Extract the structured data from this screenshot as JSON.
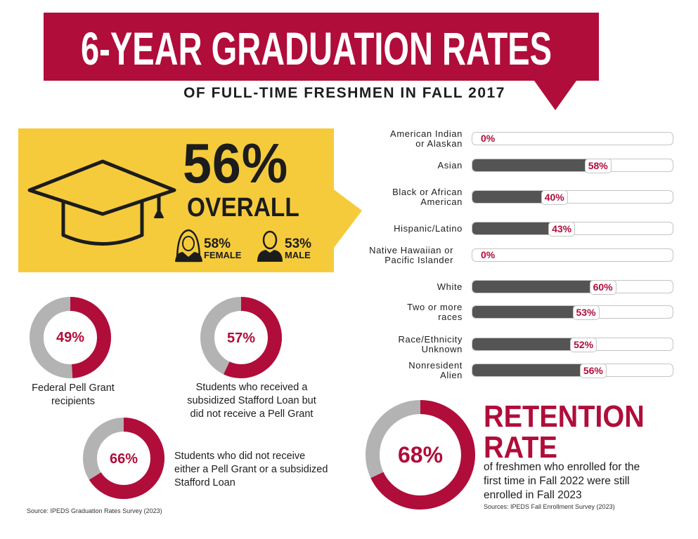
{
  "header": {
    "title": "6-YEAR GRADUATION RATES",
    "subtitle": "OF FULL-TIME FRESHMEN IN FALL 2017"
  },
  "overall": {
    "value": "56%",
    "label": "OVERALL",
    "female": {
      "value": "58%",
      "label": "FEMALE"
    },
    "male": {
      "value": "53%",
      "label": "MALE"
    }
  },
  "colors": {
    "brand_red": "#B00D3A",
    "yellow": "#F5CB3C",
    "bar_fill": "#545454",
    "donut_rest": "#B3B3B3"
  },
  "chart_data": [
    {
      "type": "bar",
      "orientation": "horizontal",
      "categories": [
        "American Indian\nor Alaskan",
        "Asian",
        "Black or African\nAmerican",
        "Hispanic/Latino",
        "Native Hawaiian or\nPacific Islander",
        "White",
        "Two or more\nraces",
        "Race/Ethnicity\nUnknown",
        "Nonresident\nAlien"
      ],
      "values": [
        0,
        58,
        40,
        43,
        0,
        60,
        53,
        52,
        56
      ],
      "labels": [
        "0%",
        "58%",
        "40%",
        "43%",
        "0%",
        "60%",
        "53%",
        "52%",
        "56%"
      ],
      "unit": "%"
    },
    {
      "type": "pie",
      "style": "donut",
      "items": [
        {
          "value": 49,
          "label": "49%",
          "caption": [
            "Federal Pell Grant",
            "recipients"
          ]
        },
        {
          "value": 57,
          "label": "57%",
          "caption": [
            "Students who received a",
            "subsidized Stafford Loan but",
            "did not receive a Pell Grant"
          ]
        },
        {
          "value": 66,
          "label": "66%",
          "caption": [
            "Students who did not receive",
            "either a Pell Grant or a subsidized",
            "Stafford Loan"
          ]
        }
      ],
      "source": "Source: IPEDS Graduation Rates Survey (2023)"
    },
    {
      "type": "pie",
      "style": "donut",
      "value": 68,
      "label": "68%",
      "title": [
        "RETENTION",
        "RATE"
      ],
      "description": [
        "of freshmen who enrolled for the",
        "first time in Fall 2022 were still",
        "enrolled in Fall 2023"
      ],
      "source": "Sources:  IPEDS Fall Enrollment Survey (2023)"
    }
  ]
}
